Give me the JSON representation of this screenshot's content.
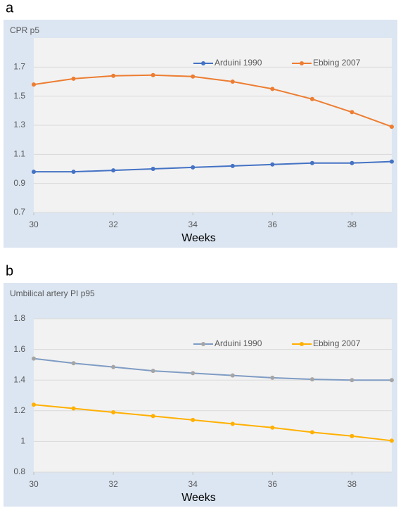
{
  "chart_data": [
    {
      "type": "line",
      "panel": "a",
      "title": "CPR p5",
      "xlabel": "Weeks",
      "x": [
        30,
        31,
        32,
        33,
        34,
        35,
        36,
        37,
        38,
        39
      ],
      "xlim": [
        30,
        39
      ],
      "xticks": [
        30,
        32,
        34,
        36,
        38
      ],
      "ylim": [
        0.7,
        1.9
      ],
      "yticks": [
        0.7,
        0.9,
        1.1,
        1.3,
        1.5,
        1.7
      ],
      "grid": true,
      "legend": "upper right",
      "series": [
        {
          "name": "Arduini 1990",
          "color": "#4472c4",
          "values": [
            0.98,
            0.98,
            0.99,
            1.0,
            1.01,
            1.02,
            1.03,
            1.04,
            1.04,
            1.05
          ]
        },
        {
          "name": "Ebbing 2007",
          "color": "#ed7d31",
          "values": [
            1.58,
            1.62,
            1.64,
            1.645,
            1.635,
            1.6,
            1.55,
            1.48,
            1.39,
            1.29
          ]
        }
      ]
    },
    {
      "type": "line",
      "panel": "b",
      "title": "Umbilical artery PI p95",
      "xlabel": "Weeks",
      "x": [
        30,
        31,
        32,
        33,
        34,
        35,
        36,
        37,
        38,
        39
      ],
      "xlim": [
        30,
        39
      ],
      "xticks": [
        30,
        32,
        34,
        36,
        38
      ],
      "ylim": [
        0.8,
        1.8
      ],
      "yticks": [
        0.8,
        1,
        1.2,
        1.4,
        1.6,
        1.8
      ],
      "grid": true,
      "legend": "upper right",
      "series": [
        {
          "name": "Arduini 1990",
          "color": "#7f9cc4",
          "marker_color": "#a5a5a5",
          "values": [
            1.54,
            1.51,
            1.485,
            1.46,
            1.445,
            1.43,
            1.415,
            1.405,
            1.4,
            1.4
          ]
        },
        {
          "name": "Ebbing 2007",
          "color": "#ffb000",
          "values": [
            1.24,
            1.215,
            1.19,
            1.165,
            1.14,
            1.115,
            1.09,
            1.06,
            1.035,
            1.005
          ]
        }
      ]
    }
  ]
}
